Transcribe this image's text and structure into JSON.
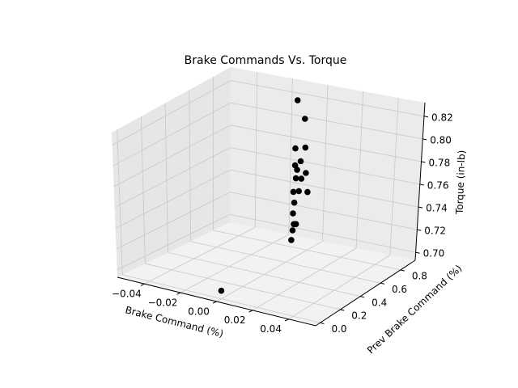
{
  "chart_data": {
    "type": "scatter",
    "projection": "3d",
    "title": "Brake Commands Vs. Torque",
    "xlabel": "Brake Command (%)",
    "ylabel": "Prev Brake Command (%)",
    "zlabel": "Torque (in-lb)",
    "xlim": [
      -0.055,
      0.055
    ],
    "ylim": [
      -0.045,
      0.945
    ],
    "zlim": [
      0.693,
      0.832
    ],
    "xticks": [
      -0.04,
      -0.02,
      0.0,
      0.02,
      0.04
    ],
    "xtick_labels": [
      "−0.04",
      "−0.02",
      "0.00",
      "0.02",
      "0.04"
    ],
    "yticks": [
      0.0,
      0.2,
      0.4,
      0.6,
      0.8
    ],
    "ytick_labels": [
      "0.0",
      "0.2",
      "0.4",
      "0.6",
      "0.8"
    ],
    "zticks": [
      0.7,
      0.72,
      0.74,
      0.76,
      0.78,
      0.8,
      0.82
    ],
    "ztick_labels": [
      "0.70",
      "0.72",
      "0.74",
      "0.76",
      "0.78",
      "0.80",
      "0.82"
    ],
    "grid": true,
    "marker_color": "#000000",
    "points": [
      {
        "x": 0.0,
        "y": 0.0,
        "z": 0.7
      },
      {
        "x": 0.0,
        "y": 0.68,
        "z": 0.832
      },
      {
        "x": 0.0,
        "y": 0.75,
        "z": 0.812
      },
      {
        "x": 0.0,
        "y": 0.67,
        "z": 0.79
      },
      {
        "x": 0.0,
        "y": 0.76,
        "z": 0.786
      },
      {
        "x": 0.0,
        "y": 0.72,
        "z": 0.776
      },
      {
        "x": 0.0,
        "y": 0.67,
        "z": 0.775
      },
      {
        "x": 0.0,
        "y": 0.69,
        "z": 0.77
      },
      {
        "x": 0.0,
        "y": 0.77,
        "z": 0.763
      },
      {
        "x": 0.0,
        "y": 0.68,
        "z": 0.763
      },
      {
        "x": 0.0,
        "y": 0.73,
        "z": 0.76
      },
      {
        "x": 0.0,
        "y": 0.66,
        "z": 0.752
      },
      {
        "x": 0.0,
        "y": 0.71,
        "z": 0.75
      },
      {
        "x": 0.0,
        "y": 0.79,
        "z": 0.745
      },
      {
        "x": 0.0,
        "y": 0.67,
        "z": 0.742
      },
      {
        "x": 0.0,
        "y": 0.66,
        "z": 0.733
      },
      {
        "x": 0.0,
        "y": 0.67,
        "z": 0.723
      },
      {
        "x": 0.0,
        "y": 0.69,
        "z": 0.722
      },
      {
        "x": 0.0,
        "y": 0.66,
        "z": 0.718
      },
      {
        "x": 0.0,
        "y": 0.65,
        "z": 0.71
      }
    ]
  }
}
